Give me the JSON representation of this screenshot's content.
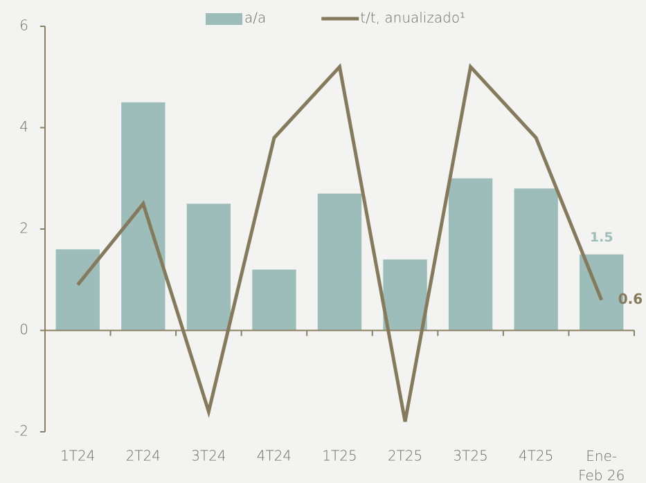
{
  "chart_data": {
    "type": "bar_line",
    "categories": [
      "1T24",
      "2T24",
      "3T24",
      "4T24",
      "1T25",
      "2T25",
      "3T25",
      "4T25",
      "Ene-Feb 26"
    ],
    "series": [
      {
        "name": "a/a",
        "type": "bar",
        "color": "#9dbdbb",
        "values": [
          1.6,
          4.5,
          2.5,
          1.2,
          2.7,
          1.4,
          3.0,
          2.8,
          1.5
        ]
      },
      {
        "name": "t/t, anualizado¹",
        "type": "line",
        "color": "#857a5b",
        "values": [
          0.9,
          2.5,
          -1.6,
          3.8,
          5.2,
          -1.8,
          5.2,
          3.8,
          0.6
        ]
      }
    ],
    "ylim": [
      -2,
      6
    ],
    "yticks": [
      -2,
      0,
      2,
      4,
      6
    ]
  }
}
